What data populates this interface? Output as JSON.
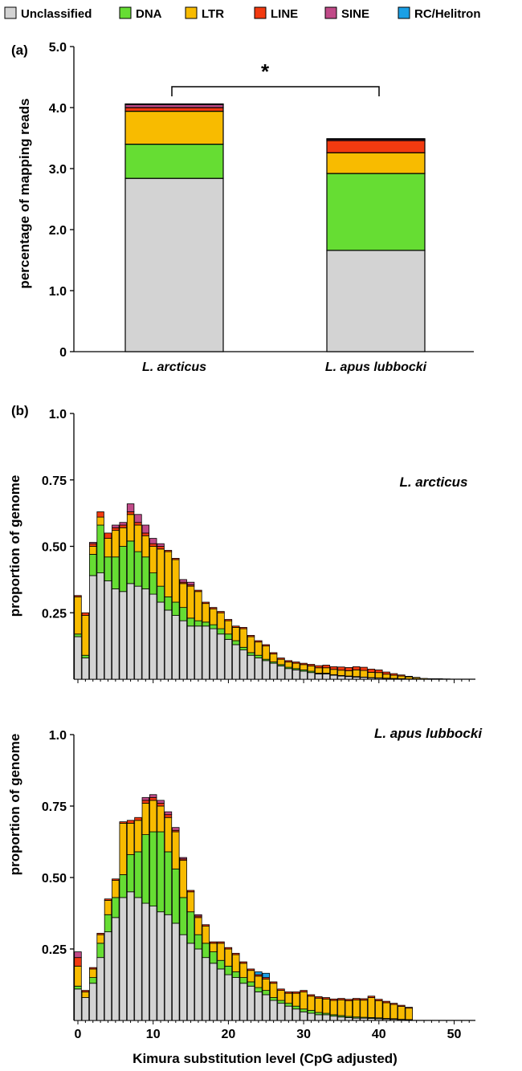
{
  "colors": {
    "Unclassified": "#d3d3d3",
    "DNA": "#66dd33",
    "LTR": "#f8bb00",
    "LINE": "#f23a10",
    "SINE": "#c04a88",
    "RC/Helitron": "#1aa0e6"
  },
  "legend": [
    "Unclassified",
    "DNA",
    "LTR",
    "LINE",
    "SINE",
    "RC/Helitron"
  ],
  "chart_data": [
    {
      "type": "bar",
      "panel": "(a)",
      "stacked": true,
      "ylabel": "percentage of mapping reads",
      "ylim": [
        0,
        5.0
      ],
      "yticks": [
        "0",
        "1.0",
        "2.0",
        "3.0",
        "4.0",
        "5.0"
      ],
      "categories": [
        "L. arcticus",
        "L. apus lubbocki"
      ],
      "annotation": "*",
      "series": [
        {
          "name": "Unclassified",
          "values": [
            2.84,
            1.66
          ]
        },
        {
          "name": "DNA",
          "values": [
            0.56,
            1.26
          ]
        },
        {
          "name": "LTR",
          "values": [
            0.54,
            0.34
          ]
        },
        {
          "name": "LINE",
          "values": [
            0.06,
            0.2
          ]
        },
        {
          "name": "SINE",
          "values": [
            0.05,
            0.02
          ]
        },
        {
          "name": "RC/Helitron",
          "values": [
            0.01,
            0.01
          ]
        }
      ]
    },
    {
      "type": "bar",
      "panel": "(b)",
      "stacked": true,
      "inset_label": "L. arcticus",
      "ylabel": "proportion of genome",
      "ylim": [
        0,
        1.0
      ],
      "yticks": [
        "0.25",
        "0.50",
        "0.75",
        "1.0"
      ],
      "x": [
        0,
        1,
        2,
        3,
        4,
        5,
        6,
        7,
        8,
        9,
        10,
        11,
        12,
        13,
        14,
        15,
        16,
        17,
        18,
        19,
        20,
        21,
        22,
        23,
        24,
        25,
        26,
        27,
        28,
        29,
        30,
        31,
        32,
        33,
        34,
        35,
        36,
        37,
        38,
        39,
        40,
        41,
        42,
        43,
        44,
        45,
        46,
        47,
        48,
        49,
        50
      ],
      "series": [
        {
          "name": "Unclassified",
          "values": [
            0.16,
            0.08,
            0.39,
            0.4,
            0.37,
            0.34,
            0.33,
            0.36,
            0.35,
            0.34,
            0.32,
            0.29,
            0.26,
            0.24,
            0.22,
            0.2,
            0.2,
            0.2,
            0.19,
            0.17,
            0.15,
            0.13,
            0.11,
            0.09,
            0.08,
            0.07,
            0.06,
            0.05,
            0.04,
            0.035,
            0.03,
            0.025,
            0.02,
            0.02,
            0.015,
            0.012,
            0.01,
            0.008,
            0.007,
            0.005,
            0.004,
            0.003,
            0.002,
            0.002,
            0.001,
            0.001,
            0.0,
            0.0,
            0.0,
            0.0,
            0.0
          ]
        },
        {
          "name": "DNA",
          "values": [
            0.01,
            0.01,
            0.08,
            0.18,
            0.09,
            0.12,
            0.17,
            0.16,
            0.13,
            0.12,
            0.08,
            0.06,
            0.05,
            0.05,
            0.05,
            0.03,
            0.02,
            0.015,
            0.015,
            0.02,
            0.02,
            0.015,
            0.01,
            0.01,
            0.01,
            0.005,
            0.005,
            0.005,
            0.005,
            0.005,
            0.005,
            0.005,
            0.003,
            0.003,
            0.002,
            0.002,
            0.002,
            0.002,
            0.001,
            0.001,
            0.001,
            0.001,
            0.001,
            0.0,
            0.0,
            0.0,
            0.0,
            0.0,
            0.0,
            0.0,
            0.0
          ]
        },
        {
          "name": "LTR",
          "values": [
            0.14,
            0.15,
            0.03,
            0.03,
            0.07,
            0.1,
            0.07,
            0.1,
            0.1,
            0.08,
            0.1,
            0.14,
            0.17,
            0.16,
            0.09,
            0.12,
            0.11,
            0.07,
            0.06,
            0.06,
            0.05,
            0.05,
            0.07,
            0.06,
            0.05,
            0.05,
            0.03,
            0.02,
            0.02,
            0.02,
            0.02,
            0.02,
            0.02,
            0.02,
            0.02,
            0.02,
            0.02,
            0.025,
            0.025,
            0.02,
            0.02,
            0.015,
            0.012,
            0.01,
            0.008,
            0.005,
            0.003,
            0.002,
            0.002,
            0.001,
            0.0
          ]
        },
        {
          "name": "LINE",
          "values": [
            0.005,
            0.01,
            0.01,
            0.02,
            0.02,
            0.01,
            0.01,
            0.01,
            0.01,
            0.01,
            0.01,
            0.01,
            0.005,
            0.005,
            0.005,
            0.005,
            0.005,
            0.005,
            0.005,
            0.005,
            0.005,
            0.005,
            0.005,
            0.005,
            0.005,
            0.005,
            0.005,
            0.005,
            0.005,
            0.005,
            0.005,
            0.006,
            0.008,
            0.01,
            0.01,
            0.012,
            0.012,
            0.012,
            0.012,
            0.012,
            0.01,
            0.008,
            0.006,
            0.004,
            0.002,
            0.001,
            0.0,
            0.0,
            0.0,
            0.0,
            0.0
          ]
        },
        {
          "name": "SINE",
          "values": [
            0.0,
            0.0,
            0.005,
            0.0,
            0.0,
            0.01,
            0.01,
            0.03,
            0.03,
            0.03,
            0.02,
            0.01,
            0.0,
            0.0,
            0.01,
            0.01,
            0.0,
            0.0,
            0.0,
            0.0,
            0.0,
            0.0,
            0.0,
            0.0,
            0.0,
            0.0,
            0.0,
            0.0,
            0.0,
            0.0,
            0.0,
            0.0,
            0.0,
            0.0,
            0.0,
            0.0,
            0.0,
            0.0,
            0.0,
            0.0,
            0.0,
            0.0,
            0.0,
            0.0,
            0.0,
            0.0,
            0.0,
            0.0,
            0.0,
            0.0,
            0.0
          ]
        },
        {
          "name": "RC/Helitron",
          "values": [
            0.0,
            0.0,
            0.0,
            0.0,
            0.0,
            0.0,
            0.0,
            0.0,
            0.0,
            0.0,
            0.0,
            0.0,
            0.0,
            0.0,
            0.0,
            0.0,
            0.0,
            0.0,
            0.0,
            0.0,
            0.0,
            0.0,
            0.0,
            0.0,
            0.0,
            0.0,
            0.0,
            0.0,
            0.0,
            0.0,
            0.0,
            0.0,
            0.0,
            0.0,
            0.0,
            0.0,
            0.0,
            0.0,
            0.0,
            0.0,
            0.0,
            0.0,
            0.0,
            0.0,
            0.0,
            0.0,
            0.0,
            0.0,
            0.0,
            0.0,
            0.0
          ]
        }
      ]
    },
    {
      "type": "bar",
      "stacked": true,
      "inset_label": "L. apus lubbocki",
      "ylabel": "proportion of genome",
      "xlabel": "Kimura substitution level (CpG adjusted)",
      "ylim": [
        0,
        1.0
      ],
      "yticks": [
        "0.25",
        "0.50",
        "0.75",
        "1.0"
      ],
      "xticks": [
        "0",
        "10",
        "20",
        "30",
        "40",
        "50"
      ],
      "x": [
        0,
        1,
        2,
        3,
        4,
        5,
        6,
        7,
        8,
        9,
        10,
        11,
        12,
        13,
        14,
        15,
        16,
        17,
        18,
        19,
        20,
        21,
        22,
        23,
        24,
        25,
        26,
        27,
        28,
        29,
        30,
        31,
        32,
        33,
        34,
        35,
        36,
        37,
        38,
        39,
        40,
        41,
        42,
        43,
        44,
        45,
        46,
        47,
        48,
        49,
        50
      ],
      "series": [
        {
          "name": "Unclassified",
          "values": [
            0.11,
            0.08,
            0.13,
            0.22,
            0.31,
            0.36,
            0.43,
            0.45,
            0.43,
            0.41,
            0.4,
            0.38,
            0.37,
            0.34,
            0.3,
            0.27,
            0.25,
            0.22,
            0.2,
            0.18,
            0.16,
            0.15,
            0.13,
            0.12,
            0.1,
            0.09,
            0.07,
            0.06,
            0.05,
            0.04,
            0.03,
            0.025,
            0.02,
            0.02,
            0.015,
            0.012,
            0.01,
            0.008,
            0.008,
            0.007,
            0.006,
            0.005,
            0.004,
            0.003,
            0.002,
            0.0,
            0.0,
            0.0,
            0.0,
            0.0,
            0.0
          ]
        },
        {
          "name": "DNA",
          "values": [
            0.01,
            0.0,
            0.02,
            0.05,
            0.06,
            0.07,
            0.08,
            0.13,
            0.16,
            0.24,
            0.26,
            0.28,
            0.22,
            0.19,
            0.13,
            0.11,
            0.05,
            0.05,
            0.04,
            0.03,
            0.03,
            0.02,
            0.02,
            0.015,
            0.015,
            0.015,
            0.01,
            0.01,
            0.01,
            0.01,
            0.01,
            0.01,
            0.008,
            0.005,
            0.005,
            0.005,
            0.004,
            0.004,
            0.003,
            0.003,
            0.003,
            0.002,
            0.002,
            0.001,
            0.001,
            0.0,
            0.0,
            0.0,
            0.0,
            0.0,
            0.0
          ]
        },
        {
          "name": "LTR",
          "values": [
            0.07,
            0.02,
            0.03,
            0.03,
            0.05,
            0.06,
            0.18,
            0.11,
            0.11,
            0.11,
            0.11,
            0.09,
            0.12,
            0.13,
            0.13,
            0.07,
            0.06,
            0.06,
            0.03,
            0.06,
            0.06,
            0.06,
            0.05,
            0.04,
            0.04,
            0.04,
            0.05,
            0.035,
            0.035,
            0.045,
            0.06,
            0.05,
            0.05,
            0.05,
            0.05,
            0.055,
            0.055,
            0.06,
            0.06,
            0.07,
            0.06,
            0.055,
            0.05,
            0.045,
            0.04,
            0.0,
            0.0,
            0.0,
            0.0,
            0.0,
            0.0
          ]
        },
        {
          "name": "LINE",
          "values": [
            0.03,
            0.005,
            0.005,
            0.005,
            0.005,
            0.005,
            0.005,
            0.01,
            0.01,
            0.01,
            0.01,
            0.01,
            0.01,
            0.005,
            0.005,
            0.005,
            0.005,
            0.005,
            0.005,
            0.005,
            0.005,
            0.005,
            0.005,
            0.005,
            0.005,
            0.005,
            0.005,
            0.005,
            0.005,
            0.005,
            0.005,
            0.005,
            0.005,
            0.005,
            0.005,
            0.005,
            0.005,
            0.005,
            0.005,
            0.005,
            0.005,
            0.005,
            0.004,
            0.004,
            0.003,
            0.0,
            0.0,
            0.0,
            0.0,
            0.0,
            0.0
          ]
        },
        {
          "name": "SINE",
          "values": [
            0.02,
            0.0,
            0.0,
            0.0,
            0.0,
            0.0,
            0.0,
            0.0,
            0.0,
            0.01,
            0.01,
            0.01,
            0.01,
            0.01,
            0.005,
            0.0,
            0.005,
            0.0,
            0.0,
            0.0,
            0.0,
            0.0,
            0.0,
            0.0,
            0.0,
            0.0,
            0.0,
            0.0,
            0.0,
            0.0,
            0.0,
            0.0,
            0.0,
            0.0,
            0.0,
            0.0,
            0.0,
            0.0,
            0.0,
            0.0,
            0.0,
            0.0,
            0.0,
            0.0,
            0.0,
            0.0,
            0.0,
            0.0,
            0.0,
            0.0,
            0.0
          ]
        },
        {
          "name": "RC/Helitron",
          "values": [
            0.0,
            0.0,
            0.0,
            0.0,
            0.0,
            0.0,
            0.0,
            0.0,
            0.0,
            0.0,
            0.0,
            0.0,
            0.0,
            0.0,
            0.0,
            0.0,
            0.0,
            0.0,
            0.0,
            0.0,
            0.0,
            0.0,
            0.0,
            0.0,
            0.01,
            0.015,
            0.0,
            0.0,
            0.0,
            0.0,
            0.0,
            0.0,
            0.0,
            0.0,
            0.0,
            0.0,
            0.0,
            0.0,
            0.0,
            0.0,
            0.0,
            0.0,
            0.0,
            0.0,
            0.0,
            0.0,
            0.0,
            0.0,
            0.0,
            0.0,
            0.0
          ]
        }
      ]
    }
  ]
}
